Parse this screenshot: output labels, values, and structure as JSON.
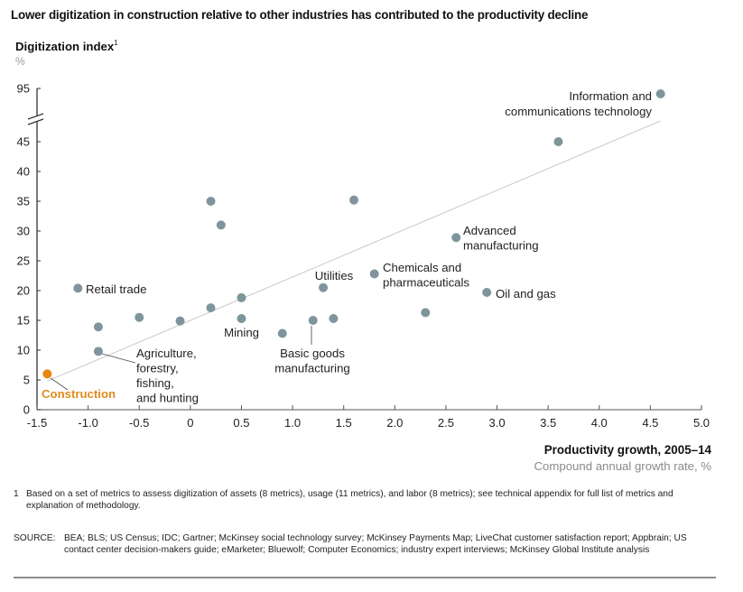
{
  "title": "Lower digitization in construction relative to other industries has contributed to the productivity decline",
  "colors": {
    "point": "#7f959c",
    "highlight": "#e8870e",
    "trendline": "#c8c8c8",
    "axis": "#333333"
  },
  "chart_data": {
    "type": "scatter",
    "title": "Lower digitization in construction relative to other industries has contributed to the productivity decline",
    "ylabel": "Digitization index",
    "ylabel_footnote_marker": "1",
    "yunit": "%",
    "xlabel": "Productivity growth, 2005–14",
    "xunit": "Compound annual growth rate, %",
    "xlim": [
      -1.5,
      5.0
    ],
    "ylim": [
      0,
      45
    ],
    "y_break": {
      "above": 45,
      "top_value": 95
    },
    "x_ticks": [
      "-1.5",
      "-1.0",
      "-0.5",
      "0",
      "0.5",
      "1.0",
      "1.5",
      "2.0",
      "2.5",
      "3.0",
      "3.5",
      "4.0",
      "4.5",
      "5.0"
    ],
    "x_tick_values": [
      -1.5,
      -1.0,
      -0.5,
      0,
      0.5,
      1.0,
      1.5,
      2.0,
      2.5,
      3.0,
      3.5,
      4.0,
      4.5,
      5.0
    ],
    "y_ticks": [
      "0",
      "5",
      "10",
      "15",
      "20",
      "25",
      "30",
      "35",
      "40",
      "45",
      "95"
    ],
    "y_tick_values": [
      0,
      5,
      10,
      15,
      20,
      25,
      30,
      35,
      40,
      45,
      95
    ],
    "grid": false,
    "trendline": {
      "x": [
        -1.4,
        4.6
      ],
      "y": [
        4.8,
        48.5
      ]
    },
    "points": [
      {
        "label": "Construction",
        "x": -1.4,
        "y": 6.0,
        "highlight": true
      },
      {
        "label": "Agriculture, forestry, fishing, and hunting",
        "x": -0.9,
        "y": 9.8
      },
      {
        "label": "Retail trade",
        "x": -1.1,
        "y": 20.4
      },
      {
        "label": "",
        "x": -0.9,
        "y": 13.9
      },
      {
        "label": "",
        "x": -0.5,
        "y": 15.5
      },
      {
        "label": "",
        "x": -0.1,
        "y": 14.9
      },
      {
        "label": "",
        "x": 0.2,
        "y": 17.1
      },
      {
        "label": "",
        "x": 0.2,
        "y": 35.0
      },
      {
        "label": "",
        "x": 0.3,
        "y": 31.0
      },
      {
        "label": "",
        "x": 0.5,
        "y": 18.8
      },
      {
        "label": "Mining",
        "x": 0.5,
        "y": 15.3
      },
      {
        "label": "",
        "x": 0.9,
        "y": 12.8
      },
      {
        "label": "Basic goods manufacturing",
        "x": 1.2,
        "y": 15.0
      },
      {
        "label": "",
        "x": 1.4,
        "y": 15.3
      },
      {
        "label": "Utilities",
        "x": 1.3,
        "y": 20.5
      },
      {
        "label": "",
        "x": 1.6,
        "y": 35.2
      },
      {
        "label": "Chemicals and pharmaceuticals",
        "x": 1.8,
        "y": 22.8
      },
      {
        "label": "",
        "x": 2.3,
        "y": 16.3
      },
      {
        "label": "Advanced manufacturing",
        "x": 2.6,
        "y": 28.9
      },
      {
        "label": "Oil and gas",
        "x": 2.9,
        "y": 19.7
      },
      {
        "label": "",
        "x": 3.6,
        "y": 45.0
      },
      {
        "label": "Information and communications technology",
        "x": 4.6,
        "y": 95.0
      }
    ],
    "annotations": [
      {
        "lines": [
          "Construction"
        ],
        "for": "Construction",
        "highlight": true
      },
      {
        "lines": [
          "Agriculture,",
          "forestry,",
          "fishing,",
          "and hunting"
        ],
        "for": "Agriculture, forestry, fishing, and hunting"
      },
      {
        "lines": [
          "Retail trade"
        ],
        "for": "Retail trade"
      },
      {
        "lines": [
          "Mining"
        ],
        "for": "Mining"
      },
      {
        "lines": [
          "Basic goods",
          "manufacturing"
        ],
        "for": "Basic goods manufacturing"
      },
      {
        "lines": [
          "Utilities"
        ],
        "for": "Utilities"
      },
      {
        "lines": [
          "Chemicals and",
          "pharmaceuticals"
        ],
        "for": "Chemicals and pharmaceuticals"
      },
      {
        "lines": [
          "Advanced",
          "manufacturing"
        ],
        "for": "Advanced manufacturing"
      },
      {
        "lines": [
          "Oil and gas"
        ],
        "for": "Oil and gas"
      },
      {
        "lines": [
          "Information and",
          "communications technology"
        ],
        "for": "Information and communications technology"
      }
    ]
  },
  "axis": {
    "ylabel": "Digitization index",
    "ylabel_sup": "1",
    "yunit": "%",
    "xlabel": "Productivity growth, 2005–14",
    "xunit": "Compound annual growth rate, %"
  },
  "footnote": {
    "marker": "1",
    "text": "Based on a set of metrics to assess digitization of assets (8 metrics), usage (11 metrics), and labor (8 metrics); see technical appendix for full list of metrics and explanation of methodology."
  },
  "source": {
    "label": "SOURCE:",
    "text": "BEA; BLS; US Census; IDC; Gartner; McKinsey social technology survey; McKinsey Payments Map; LiveChat customer satisfaction report; Appbrain; US contact center decision-makers guide; eMarketer; Bluewolf; Computer Economics; industry expert interviews; McKinsey Global Institute analysis"
  }
}
